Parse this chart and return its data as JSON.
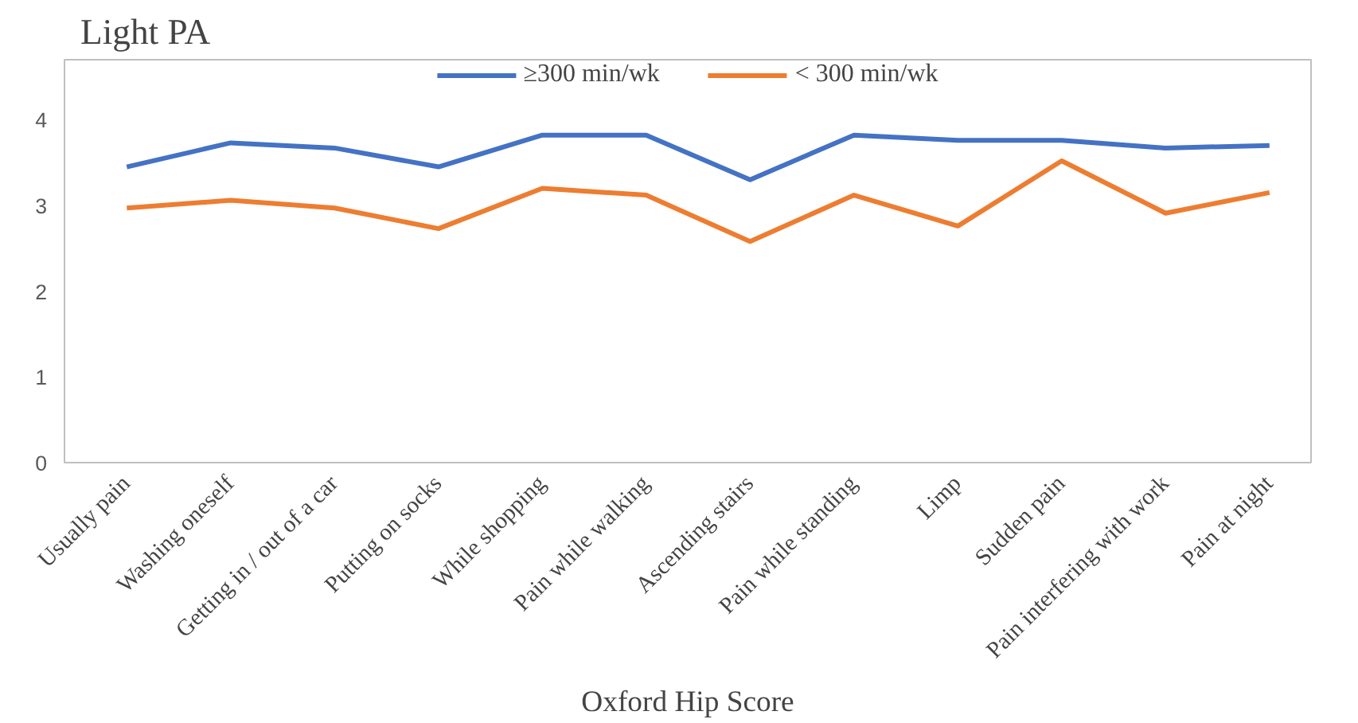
{
  "chart_data": {
    "type": "line",
    "title": "Light PA",
    "xlabel": "Oxford Hip Score",
    "categories": [
      "Usually pain",
      "Washing oneself",
      "Getting in / out of a car",
      "Putting on socks",
      "While shopping",
      "Pain while walking",
      "Ascending stairs",
      "Pain while standing",
      "Limp",
      "Sudden pain",
      "Pain interfering with work",
      "Pain at night"
    ],
    "series": [
      {
        "name": "≥300 min/wk",
        "color": "#4472c4",
        "values": [
          3.45,
          3.73,
          3.67,
          3.45,
          3.82,
          3.82,
          3.3,
          3.82,
          3.76,
          3.76,
          3.67,
          3.7
        ]
      },
      {
        "name": "< 300 min/wk",
        "color": "#ed7d31",
        "values": [
          2.97,
          3.06,
          2.97,
          2.73,
          3.2,
          3.12,
          2.58,
          3.12,
          2.76,
          3.52,
          2.91,
          3.15
        ]
      }
    ],
    "ylim": [
      0,
      4.7
    ],
    "yticks": [
      0,
      1,
      2,
      3,
      4
    ],
    "grid": false,
    "legend": "top",
    "marker": "none",
    "line_style": "solid"
  }
}
